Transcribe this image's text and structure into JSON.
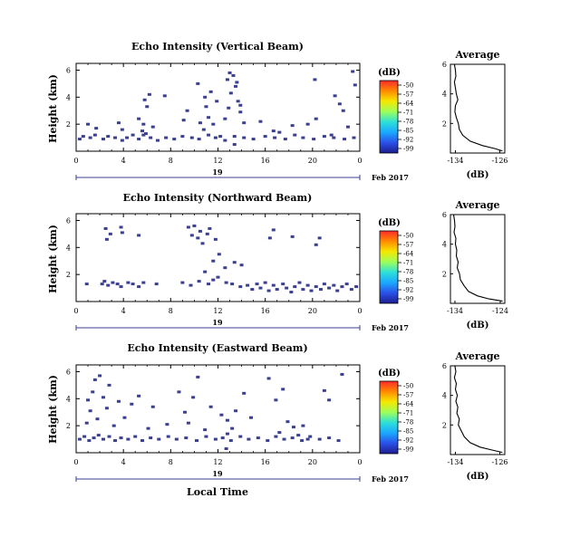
{
  "colors": {
    "echo": "#3a3f8f",
    "axis": "#000000",
    "colorbar_stops": [
      "#ff2a2a",
      "#ff8a00",
      "#f5e800",
      "#9dff5a",
      "#2de0d8",
      "#1aa8ff",
      "#2a50e8",
      "#1e1e8f"
    ]
  },
  "chart_data": [
    {
      "type": "heatmap",
      "title": "Echo Intensity (Vertical Beam)",
      "ylabel": "Height (km)",
      "xlabel": "",
      "x_ticks": [
        "0",
        "4",
        "8",
        "12",
        "16",
        "20",
        "0"
      ],
      "y_ticks": [
        "6",
        "4",
        "2"
      ],
      "xlim": [
        0,
        24
      ],
      "ylim": [
        0,
        6.5
      ],
      "date_label": "19",
      "month_label": "Feb 2017",
      "colorbar": {
        "unit": "(dB)",
        "ticks": [
          "-50",
          "-57",
          "-64",
          "-71",
          "-78",
          "-85",
          "-92",
          "-99"
        ]
      },
      "echoes": [
        [
          0.3,
          0.9
        ],
        [
          0.6,
          1.1
        ],
        [
          1.2,
          1.0
        ],
        [
          1.6,
          1.2
        ],
        [
          2.3,
          0.9
        ],
        [
          2.7,
          1.1
        ],
        [
          3.3,
          1.0
        ],
        [
          3.9,
          0.8
        ],
        [
          4.3,
          1.0
        ],
        [
          4.8,
          1.2
        ],
        [
          5.3,
          0.9
        ],
        [
          5.7,
          1.2
        ],
        [
          6.3,
          1.0
        ],
        [
          6.9,
          0.8
        ],
        [
          7.6,
          1.0
        ],
        [
          8.3,
          0.9
        ],
        [
          9.0,
          1.1
        ],
        [
          9.8,
          1.0
        ],
        [
          10.4,
          0.9
        ],
        [
          11.2,
          1.2
        ],
        [
          11.8,
          1.0
        ],
        [
          12.6,
          0.8
        ],
        [
          13.4,
          1.1
        ],
        [
          14.2,
          1.0
        ],
        [
          15.0,
          0.9
        ],
        [
          16.0,
          1.1
        ],
        [
          16.8,
          1.0
        ],
        [
          17.7,
          0.9
        ],
        [
          18.5,
          1.2
        ],
        [
          19.2,
          1.0
        ],
        [
          20.1,
          0.9
        ],
        [
          21.0,
          1.1
        ],
        [
          21.8,
          1.0
        ],
        [
          22.7,
          0.9
        ],
        [
          23.5,
          1.0
        ],
        [
          1.0,
          2.0
        ],
        [
          1.7,
          1.7
        ],
        [
          3.6,
          2.1
        ],
        [
          3.9,
          1.6
        ],
        [
          5.6,
          1.5
        ],
        [
          5.7,
          2.0
        ],
        [
          5.9,
          1.3
        ],
        [
          6.0,
          3.3
        ],
        [
          5.8,
          3.8
        ],
        [
          5.3,
          2.4
        ],
        [
          6.2,
          4.2
        ],
        [
          6.5,
          1.8
        ],
        [
          7.5,
          4.1
        ],
        [
          9.1,
          2.3
        ],
        [
          9.4,
          3.0
        ],
        [
          10.3,
          5.0
        ],
        [
          10.5,
          2.1
        ],
        [
          10.8,
          1.6
        ],
        [
          10.9,
          4.0
        ],
        [
          11.0,
          3.3
        ],
        [
          11.2,
          2.5
        ],
        [
          11.4,
          4.4
        ],
        [
          11.6,
          2.0
        ],
        [
          11.9,
          3.7
        ],
        [
          12.2,
          1.1
        ],
        [
          12.6,
          2.4
        ],
        [
          12.9,
          3.2
        ],
        [
          12.8,
          5.3
        ],
        [
          13.1,
          4.3
        ],
        [
          13.3,
          5.6
        ],
        [
          13.5,
          4.8
        ],
        [
          13.0,
          5.8
        ],
        [
          13.7,
          3.7
        ],
        [
          13.6,
          5.1
        ],
        [
          13.9,
          2.9
        ],
        [
          14.2,
          2.1
        ],
        [
          13.4,
          0.5
        ],
        [
          13.9,
          3.4
        ],
        [
          15.6,
          2.2
        ],
        [
          16.7,
          1.5
        ],
        [
          17.2,
          1.4
        ],
        [
          18.3,
          1.9
        ],
        [
          19.6,
          2.0
        ],
        [
          20.3,
          2.4
        ],
        [
          20.2,
          5.3
        ],
        [
          21.6,
          1.2
        ],
        [
          21.9,
          4.1
        ],
        [
          22.3,
          3.5
        ],
        [
          22.6,
          3.0
        ],
        [
          23.4,
          5.9
        ],
        [
          23.6,
          4.9
        ],
        [
          23.0,
          1.8
        ]
      ],
      "average_profile": {
        "title": "Average",
        "xlabel": "(dB)",
        "x_ticks": [
          "-134",
          "-126"
        ],
        "y_ticks": [
          "6",
          "4",
          "2"
        ],
        "xlim": [
          -135,
          -124
        ],
        "ylim": [
          0,
          6
        ],
        "x": [
          -134.2,
          -134.0,
          -133.9,
          -134.2,
          -134.0,
          -133.8,
          -133.5,
          -134.0,
          -134.1,
          -133.8,
          -133.4,
          -133.2,
          -132.5,
          -131.0,
          -128.5,
          -126.0,
          -124.5
        ],
        "y": [
          6.0,
          5.6,
          5.2,
          4.8,
          4.4,
          4.0,
          3.6,
          3.2,
          2.8,
          2.4,
          2.0,
          1.6,
          1.2,
          0.8,
          0.5,
          0.3,
          0.15
        ]
      }
    },
    {
      "type": "heatmap",
      "title": "Echo Intensity (Northward Beam)",
      "ylabel": "Height (km)",
      "xlabel": "",
      "x_ticks": [
        "0",
        "4",
        "8",
        "12",
        "16",
        "20",
        "0"
      ],
      "y_ticks": [
        "6",
        "4",
        "2"
      ],
      "xlim": [
        0,
        24
      ],
      "ylim": [
        0,
        6.5
      ],
      "date_label": "19",
      "month_label": "Feb 2017",
      "colorbar": {
        "unit": "(dB)",
        "ticks": [
          "-50",
          "-57",
          "-64",
          "-71",
          "-78",
          "-85",
          "-92",
          "-99"
        ]
      },
      "echoes": [
        [
          0.9,
          1.3
        ],
        [
          2.2,
          1.3
        ],
        [
          2.4,
          1.5
        ],
        [
          2.7,
          1.2
        ],
        [
          3.1,
          1.4
        ],
        [
          3.5,
          1.3
        ],
        [
          3.8,
          1.1
        ],
        [
          4.4,
          1.4
        ],
        [
          4.8,
          1.3
        ],
        [
          5.3,
          1.1
        ],
        [
          5.7,
          1.4
        ],
        [
          6.8,
          1.3
        ],
        [
          9.0,
          1.4
        ],
        [
          9.7,
          1.2
        ],
        [
          10.4,
          1.5
        ],
        [
          11.2,
          1.3
        ],
        [
          11.6,
          1.6
        ],
        [
          12.0,
          1.8
        ],
        [
          12.7,
          1.4
        ],
        [
          13.2,
          1.3
        ],
        [
          13.9,
          1.1
        ],
        [
          14.5,
          1.2
        ],
        [
          14.9,
          0.9
        ],
        [
          15.3,
          1.3
        ],
        [
          15.6,
          1.0
        ],
        [
          16.0,
          1.4
        ],
        [
          16.3,
          0.8
        ],
        [
          16.7,
          1.2
        ],
        [
          17.0,
          0.9
        ],
        [
          17.5,
          1.3
        ],
        [
          17.8,
          1.0
        ],
        [
          18.2,
          0.7
        ],
        [
          18.5,
          1.1
        ],
        [
          18.9,
          1.4
        ],
        [
          19.2,
          0.9
        ],
        [
          19.6,
          1.2
        ],
        [
          19.9,
          0.8
        ],
        [
          20.3,
          1.1
        ],
        [
          20.7,
          0.9
        ],
        [
          21.0,
          1.3
        ],
        [
          21.4,
          1.0
        ],
        [
          21.8,
          1.2
        ],
        [
          22.1,
          0.8
        ],
        [
          22.5,
          1.1
        ],
        [
          22.9,
          1.3
        ],
        [
          23.3,
          0.9
        ],
        [
          23.7,
          1.1
        ],
        [
          2.5,
          5.4
        ],
        [
          2.6,
          4.6
        ],
        [
          2.9,
          5.0
        ],
        [
          3.8,
          5.5
        ],
        [
          3.9,
          5.1
        ],
        [
          5.3,
          4.9
        ],
        [
          9.5,
          5.5
        ],
        [
          9.8,
          4.9
        ],
        [
          10.0,
          5.6
        ],
        [
          10.3,
          4.7
        ],
        [
          10.5,
          5.2
        ],
        [
          10.7,
          4.3
        ],
        [
          11.1,
          5.0
        ],
        [
          11.3,
          5.4
        ],
        [
          11.8,
          4.6
        ],
        [
          10.9,
          2.2
        ],
        [
          11.6,
          3.0
        ],
        [
          12.1,
          3.5
        ],
        [
          12.6,
          2.5
        ],
        [
          13.4,
          2.9
        ],
        [
          14.0,
          2.7
        ],
        [
          16.4,
          4.7
        ],
        [
          16.7,
          5.3
        ],
        [
          18.3,
          4.8
        ],
        [
          20.3,
          4.2
        ],
        [
          20.6,
          4.7
        ]
      ],
      "average_profile": {
        "title": "Average",
        "xlabel": "(dB)",
        "x_ticks": [
          "-134",
          "-124"
        ],
        "y_ticks": [
          "6",
          "4",
          "2"
        ],
        "xlim": [
          -135,
          -123
        ],
        "ylim": [
          0,
          6
        ],
        "x": [
          -134.3,
          -134.1,
          -134.0,
          -134.2,
          -133.8,
          -133.9,
          -133.6,
          -133.7,
          -133.3,
          -133.5,
          -133.0,
          -132.8,
          -132.0,
          -131.0,
          -129.0,
          -126.5,
          -123.5
        ],
        "y": [
          6.0,
          5.6,
          5.2,
          4.8,
          4.4,
          4.0,
          3.6,
          3.2,
          2.8,
          2.4,
          2.0,
          1.6,
          1.2,
          0.8,
          0.5,
          0.3,
          0.15
        ]
      }
    },
    {
      "type": "heatmap",
      "title": "Echo Intensity (Eastward Beam)",
      "ylabel": "Height (km)",
      "xlabel": "Local Time",
      "x_ticks": [
        "0",
        "4",
        "8",
        "12",
        "16",
        "20",
        "0"
      ],
      "y_ticks": [
        "6",
        "4",
        "2"
      ],
      "xlim": [
        0,
        24
      ],
      "ylim": [
        0,
        6.5
      ],
      "date_label": "19",
      "month_label": "Feb 2017",
      "colorbar": {
        "unit": "(dB)",
        "ticks": [
          "-50",
          "-57",
          "-64",
          "-71",
          "-78",
          "-85",
          "-92",
          "-99"
        ]
      },
      "echoes": [
        [
          0.3,
          1.0
        ],
        [
          0.7,
          1.2
        ],
        [
          1.1,
          0.9
        ],
        [
          1.5,
          1.1
        ],
        [
          1.9,
          1.3
        ],
        [
          2.3,
          1.0
        ],
        [
          2.8,
          1.2
        ],
        [
          3.3,
          0.9
        ],
        [
          3.8,
          1.1
        ],
        [
          4.4,
          1.0
        ],
        [
          5.0,
          1.2
        ],
        [
          5.6,
          0.9
        ],
        [
          6.3,
          1.1
        ],
        [
          7.0,
          1.0
        ],
        [
          7.8,
          1.2
        ],
        [
          8.5,
          1.0
        ],
        [
          9.3,
          1.1
        ],
        [
          10.2,
          0.9
        ],
        [
          11.0,
          1.2
        ],
        [
          11.8,
          1.0
        ],
        [
          12.4,
          1.1
        ],
        [
          13.1,
          0.9
        ],
        [
          13.9,
          1.2
        ],
        [
          14.6,
          1.0
        ],
        [
          15.4,
          1.1
        ],
        [
          16.2,
          0.9
        ],
        [
          16.9,
          1.2
        ],
        [
          17.6,
          1.0
        ],
        [
          18.3,
          1.1
        ],
        [
          19.1,
          0.9
        ],
        [
          19.8,
          1.2
        ],
        [
          20.6,
          1.0
        ],
        [
          21.4,
          1.1
        ],
        [
          22.2,
          0.9
        ],
        [
          0.9,
          2.2
        ],
        [
          1.2,
          3.1
        ],
        [
          1.0,
          3.9
        ],
        [
          1.4,
          4.5
        ],
        [
          1.8,
          2.5
        ],
        [
          1.6,
          5.4
        ],
        [
          2.0,
          5.7
        ],
        [
          2.3,
          4.1
        ],
        [
          2.6,
          3.3
        ],
        [
          2.8,
          5.0
        ],
        [
          3.2,
          2.0
        ],
        [
          3.6,
          3.8
        ],
        [
          4.1,
          2.6
        ],
        [
          4.7,
          3.6
        ],
        [
          5.3,
          4.2
        ],
        [
          6.1,
          1.8
        ],
        [
          6.5,
          3.4
        ],
        [
          7.7,
          2.1
        ],
        [
          8.7,
          4.5
        ],
        [
          9.2,
          3.0
        ],
        [
          9.5,
          2.2
        ],
        [
          9.9,
          4.1
        ],
        [
          10.3,
          5.6
        ],
        [
          10.9,
          1.7
        ],
        [
          11.4,
          3.4
        ],
        [
          12.3,
          2.8
        ],
        [
          12.7,
          0.3
        ],
        [
          12.8,
          1.4
        ],
        [
          12.8,
          2.4
        ],
        [
          13.2,
          1.8
        ],
        [
          13.5,
          3.1
        ],
        [
          14.2,
          4.4
        ],
        [
          14.8,
          2.6
        ],
        [
          16.3,
          5.5
        ],
        [
          16.9,
          3.9
        ],
        [
          17.5,
          4.7
        ],
        [
          17.9,
          2.3
        ],
        [
          18.4,
          1.9
        ],
        [
          18.8,
          1.3
        ],
        [
          19.2,
          2.0
        ],
        [
          19.6,
          1.0
        ],
        [
          21.0,
          4.6
        ],
        [
          21.4,
          3.9
        ],
        [
          22.5,
          5.8
        ],
        [
          17.2,
          1.5
        ]
      ],
      "average_profile": {
        "title": "Average",
        "xlabel": "(dB)",
        "x_ticks": [
          "-134",
          "-126"
        ],
        "y_ticks": [
          "6",
          "4",
          "2"
        ],
        "xlim": [
          -135,
          -124
        ],
        "ylim": [
          0,
          6
        ],
        "x": [
          -134.1,
          -133.9,
          -134.2,
          -133.8,
          -134.0,
          -133.6,
          -133.9,
          -133.5,
          -133.7,
          -133.2,
          -133.4,
          -132.8,
          -132.2,
          -131.0,
          -129.0,
          -126.5,
          -124.5
        ],
        "y": [
          6.0,
          5.6,
          5.2,
          4.8,
          4.4,
          4.0,
          3.6,
          3.2,
          2.8,
          2.4,
          2.0,
          1.6,
          1.2,
          0.8,
          0.5,
          0.3,
          0.15
        ]
      }
    }
  ]
}
